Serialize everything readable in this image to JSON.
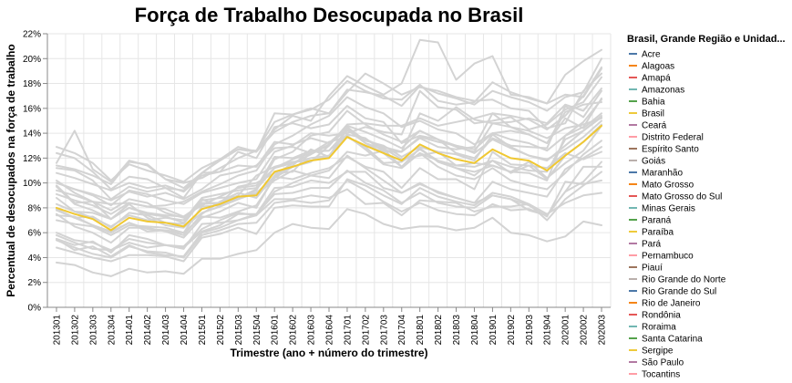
{
  "chart_data": {
    "type": "line",
    "title": "Força de Trabalho Desocupada no Brasil",
    "xlabel": "Trimestre (ano + número do trimestre)",
    "ylabel": "Percentual de desocupados na força de trabalho",
    "ylim": [
      0,
      22
    ],
    "y_ticks": [
      "0%",
      "2%",
      "4%",
      "6%",
      "8%",
      "10%",
      "12%",
      "14%",
      "16%",
      "18%",
      "20%",
      "22%"
    ],
    "grid": true,
    "legend_title": "Brasil, Grande Região e Unidad...",
    "legend_position": "right",
    "categories": [
      "201301",
      "201302",
      "201303",
      "201304",
      "201401",
      "201402",
      "201403",
      "201404",
      "201501",
      "201502",
      "201503",
      "201504",
      "201601",
      "201602",
      "201603",
      "201604",
      "201701",
      "201702",
      "201703",
      "201704",
      "201801",
      "201802",
      "201803",
      "201804",
      "201901",
      "201902",
      "201903",
      "201904",
      "202001",
      "202002",
      "202003"
    ],
    "highlight_series": "Brasil",
    "highlight_color": "#f0c832",
    "background_color": "#d3d3d3",
    "series": [
      {
        "name": "Acre",
        "color": "#4c78a8",
        "values": [
          9.1,
          8.6,
          8.2,
          7.5,
          8.4,
          8.1,
          7.9,
          7.3,
          8.2,
          8.9,
          9.6,
          9.8,
          11.2,
          11.9,
          12.4,
          13.0,
          14.6,
          14.1,
          13.5,
          12.8,
          14.2,
          13.5,
          13.0,
          12.7,
          14.0,
          13.5,
          13.2,
          12.6,
          13.8,
          14.9,
          16.7
        ]
      },
      {
        "name": "Alagoas",
        "color": "#f58518",
        "values": [
          12.9,
          12.4,
          11.6,
          10.2,
          11.5,
          11.0,
          10.6,
          10.1,
          11.2,
          11.9,
          12.7,
          12.5,
          14.1,
          14.9,
          15.4,
          15.6,
          17.5,
          17.3,
          17.0,
          16.2,
          17.8,
          17.2,
          16.8,
          16.3,
          17.4,
          16.9,
          16.5,
          15.8,
          16.9,
          17.3,
          20.0
        ]
      },
      {
        "name": "Amapá",
        "color": "#e45756",
        "values": [
          11.6,
          14.2,
          11.1,
          10.1,
          11.8,
          11.4,
          10.3,
          10.0,
          10.4,
          11.2,
          12.0,
          12.6,
          14.3,
          15.4,
          15.0,
          17.0,
          18.6,
          17.8,
          17.1,
          18.0,
          21.5,
          21.3,
          18.3,
          19.6,
          20.2,
          17.1,
          16.9,
          16.4,
          17.1,
          16.9,
          19.2
        ]
      },
      {
        "name": "Amazonas",
        "color": "#72b7b2",
        "values": [
          9.8,
          8.4,
          8.5,
          8.3,
          8.4,
          8.1,
          8.2,
          8.5,
          9.3,
          9.9,
          10.6,
          11.0,
          13.1,
          13.8,
          14.7,
          15.4,
          16.9,
          16.1,
          15.6,
          14.5,
          15.0,
          14.3,
          14.0,
          13.1,
          14.0,
          14.2,
          13.9,
          13.2,
          15.2,
          14.4,
          15.6
        ]
      },
      {
        "name": "Bahia",
        "color": "#54a24b",
        "values": [
          11.2,
          11.0,
          10.2,
          8.7,
          9.7,
          9.3,
          9.6,
          9.4,
          10.8,
          11.8,
          12.7,
          12.6,
          14.9,
          15.5,
          15.9,
          16.7,
          18.2,
          17.4,
          16.8,
          16.7,
          17.9,
          16.6,
          16.3,
          16.5,
          18.1,
          17.3,
          16.8,
          16.4,
          18.7,
          19.8,
          20.7
        ]
      },
      {
        "name": "Brasil",
        "color": "#eeca3b",
        "values": [
          8.0,
          7.5,
          7.1,
          6.2,
          7.2,
          6.9,
          6.8,
          6.5,
          7.9,
          8.3,
          8.9,
          9.0,
          10.9,
          11.3,
          11.8,
          12.0,
          13.7,
          13.0,
          12.4,
          11.8,
          13.1,
          12.4,
          11.9,
          11.6,
          12.7,
          12.0,
          11.8,
          11.0,
          12.2,
          13.3,
          14.6
        ]
      },
      {
        "name": "Ceará",
        "color": "#b279a2",
        "values": [
          8.8,
          7.7,
          7.6,
          7.1,
          8.0,
          7.5,
          7.3,
          6.8,
          8.7,
          8.1,
          8.7,
          9.2,
          10.5,
          11.4,
          12.7,
          12.1,
          14.3,
          13.2,
          12.7,
          11.3,
          12.8,
          11.7,
          11.2,
          10.9,
          11.4,
          10.9,
          11.7,
          10.4,
          11.6,
          12.6,
          14.6
        ]
      },
      {
        "name": "Distrito Federal",
        "color": "#ff9da6",
        "values": [
          10.8,
          10.4,
          9.9,
          9.4,
          10.0,
          9.6,
          9.8,
          9.3,
          10.6,
          10.9,
          11.4,
          11.3,
          13.3,
          13.1,
          13.6,
          13.2,
          14.5,
          13.4,
          13.0,
          12.1,
          12.9,
          12.5,
          12.3,
          11.8,
          13.9,
          12.9,
          12.2,
          11.9,
          12.7,
          13.7,
          15.0
        ]
      },
      {
        "name": "Espírito Santo",
        "color": "#9d755d",
        "values": [
          7.4,
          7.3,
          6.6,
          6.0,
          6.8,
          6.1,
          6.2,
          5.8,
          7.5,
          8.5,
          9.2,
          8.8,
          10.6,
          11.6,
          12.3,
          13.1,
          14.3,
          13.5,
          12.8,
          11.9,
          12.2,
          12.5,
          11.4,
          11.3,
          11.8,
          10.8,
          11.4,
          10.3,
          12.2,
          13.3,
          14.7
        ]
      },
      {
        "name": "Goiás",
        "color": "#bab0ac",
        "values": [
          6.0,
          5.4,
          5.2,
          4.6,
          5.5,
          5.2,
          5.0,
          4.9,
          6.3,
          7.0,
          7.6,
          7.4,
          9.3,
          10.0,
          10.6,
          10.4,
          12.2,
          11.2,
          10.2,
          9.2,
          9.9,
          9.3,
          8.8,
          8.4,
          10.1,
          9.5,
          9.2,
          8.9,
          11.1,
          12.0,
          12.9
        ]
      },
      {
        "name": "Maranhão",
        "color": "#4c78a8",
        "values": [
          9.7,
          8.3,
          7.8,
          7.1,
          8.3,
          7.2,
          6.6,
          6.4,
          7.6,
          8.1,
          8.7,
          9.4,
          11.9,
          12.5,
          13.8,
          14.1,
          15.8,
          14.7,
          13.9,
          13.3,
          14.2,
          13.5,
          12.9,
          12.5,
          14.8,
          14.5,
          13.9,
          13.2,
          15.7,
          16.3,
          16.5
        ]
      },
      {
        "name": "Mato Grosso",
        "color": "#f58518",
        "values": [
          5.5,
          4.6,
          4.9,
          4.1,
          5.0,
          4.4,
          4.2,
          4.1,
          6.0,
          6.4,
          7.0,
          7.5,
          9.1,
          9.2,
          9.6,
          9.6,
          11.0,
          10.0,
          9.4,
          8.4,
          9.2,
          8.4,
          8.1,
          8.0,
          9.0,
          8.7,
          8.2,
          7.3,
          10.1,
          9.9,
          10.2
        ]
      },
      {
        "name": "Mato Grosso do Sul",
        "color": "#e45756",
        "values": [
          5.4,
          4.8,
          4.3,
          4.0,
          4.9,
          4.5,
          4.4,
          4.0,
          5.8,
          6.2,
          6.7,
          6.8,
          8.4,
          8.6,
          8.4,
          8.6,
          10.2,
          9.4,
          8.5,
          7.7,
          8.4,
          7.8,
          7.5,
          7.4,
          8.3,
          7.8,
          7.9,
          7.4,
          9.3,
          10.1,
          11.7
        ]
      },
      {
        "name": "Minas Gerais",
        "color": "#72b7b2",
        "values": [
          7.0,
          6.7,
          6.5,
          5.8,
          6.6,
          6.5,
          6.4,
          6.0,
          8.1,
          8.2,
          8.8,
          9.5,
          11.2,
          11.6,
          12.0,
          12.2,
          13.8,
          12.7,
          11.5,
          11.2,
          12.4,
          11.3,
          10.6,
          10.3,
          11.2,
          10.2,
          9.8,
          9.5,
          10.8,
          12.3,
          13.4
        ]
      },
      {
        "name": "Paraná",
        "color": "#54a24b",
        "values": [
          4.8,
          4.4,
          4.0,
          3.7,
          4.2,
          4.2,
          4.1,
          3.7,
          5.6,
          5.9,
          6.4,
          5.9,
          8.0,
          8.2,
          8.1,
          8.1,
          10.3,
          9.8,
          9.0,
          8.3,
          9.6,
          8.9,
          8.5,
          8.2,
          9.2,
          8.9,
          8.3,
          7.5,
          8.4,
          9.0,
          9.2
        ]
      },
      {
        "name": "Paraíba",
        "color": "#eeca3b",
        "values": [
          10.0,
          9.5,
          9.1,
          8.6,
          9.3,
          8.9,
          9.2,
          8.7,
          9.5,
          10.6,
          10.9,
          11.4,
          12.8,
          12.9,
          12.4,
          13.3,
          13.7,
          12.9,
          11.6,
          11.7,
          12.7,
          11.8,
          11.4,
          11.6,
          11.4,
          10.9,
          10.8,
          10.2,
          13.8,
          14.5,
          16.8
        ]
      },
      {
        "name": "Pará",
        "color": "#b279a2",
        "values": [
          9.4,
          9.0,
          8.5,
          7.8,
          8.7,
          8.4,
          7.6,
          7.2,
          8.4,
          8.4,
          9.0,
          10.6,
          11.3,
          11.7,
          11.8,
          12.1,
          14.5,
          13.2,
          12.4,
          11.3,
          12.4,
          11.8,
          11.2,
          10.6,
          11.8,
          11.3,
          11.0,
          10.9,
          13.5,
          14.2,
          15.3
        ]
      },
      {
        "name": "Pernambuco",
        "color": "#ff9da6",
        "values": [
          12.4,
          12.0,
          10.9,
          9.5,
          10.5,
          10.3,
          9.6,
          8.8,
          10.8,
          11.9,
          12.9,
          12.5,
          15.6,
          15.5,
          16.0,
          15.6,
          17.3,
          18.8,
          18.0,
          17.1,
          17.7,
          17.4,
          16.9,
          16.6,
          16.7,
          16.0,
          15.8,
          14.4,
          14.8,
          17.4,
          18.8
        ]
      },
      {
        "name": "Piauí",
        "color": "#9d755d",
        "values": [
          7.9,
          7.2,
          7.3,
          6.4,
          7.6,
          7.4,
          6.8,
          6.7,
          8.6,
          8.8,
          8.9,
          9.1,
          10.2,
          11.0,
          10.6,
          11.0,
          12.5,
          12.2,
          12.6,
          12.5,
          13.6,
          12.9,
          12.7,
          12.9,
          15.6,
          14.5,
          14.2,
          13.6,
          14.4,
          14.7,
          15.2
        ]
      },
      {
        "name": "Rio Grande do Norte",
        "color": "#bab0ac",
        "values": [
          11.4,
          11.1,
          10.6,
          9.9,
          11.7,
          11.5,
          10.3,
          9.6,
          10.8,
          10.9,
          12.5,
          12.0,
          14.5,
          14.8,
          14.4,
          14.7,
          16.2,
          15.2,
          14.9,
          13.2,
          13.8,
          13.5,
          12.4,
          12.0,
          13.6,
          13.0,
          12.9,
          12.8,
          16.2,
          15.3,
          17.4
        ]
      },
      {
        "name": "Rio Grande do Sul",
        "color": "#4c78a8",
        "values": [
          5.8,
          5.2,
          4.7,
          4.6,
          5.2,
          4.8,
          5.0,
          4.7,
          6.7,
          6.8,
          7.0,
          7.4,
          8.7,
          8.7,
          9.0,
          8.8,
          9.5,
          8.3,
          8.4,
          7.4,
          8.6,
          8.5,
          8.4,
          7.7,
          8.1,
          8.1,
          8.3,
          7.0,
          8.7,
          9.8,
          10.9
        ]
      },
      {
        "name": "Rio de Janeiro",
        "color": "#f58518",
        "values": [
          7.8,
          7.2,
          6.6,
          6.1,
          6.8,
          6.3,
          6.2,
          6.0,
          7.3,
          7.2,
          7.7,
          8.2,
          10.4,
          11.3,
          11.7,
          13.0,
          14.7,
          14.8,
          14.6,
          14.6,
          15.2,
          14.6,
          14.9,
          15.2,
          15.6,
          15.4,
          15.1,
          14.3,
          15.4,
          17.0,
          19.3
        ]
      },
      {
        "name": "Rondônia",
        "color": "#e45756",
        "values": [
          5.5,
          5.0,
          5.3,
          4.4,
          5.8,
          5.5,
          5.0,
          4.8,
          6.1,
          6.6,
          7.5,
          7.5,
          9.6,
          9.7,
          10.2,
          10.0,
          10.9,
          10.9,
          9.6,
          9.2,
          10.0,
          9.2,
          8.8,
          8.4,
          9.0,
          8.7,
          7.8,
          7.4,
          9.3,
          11.3,
          11.3
        ]
      },
      {
        "name": "Roraima",
        "color": "#72b7b2",
        "values": [
          10.2,
          9.2,
          8.5,
          7.1,
          8.0,
          7.6,
          7.4,
          7.3,
          8.3,
          8.4,
          9.7,
          10.0,
          10.8,
          10.9,
          12.5,
          12.6,
          13.9,
          13.6,
          12.5,
          12.5,
          15.6,
          15.0,
          16.1,
          15.1,
          14.8,
          14.9,
          15.2,
          14.8,
          16.3,
          15.8,
          17.6
        ]
      },
      {
        "name": "Santa Catarina",
        "color": "#54a24b",
        "values": [
          3.6,
          3.4,
          2.8,
          2.5,
          3.1,
          2.8,
          2.9,
          2.7,
          3.9,
          3.9,
          4.3,
          4.6,
          6.0,
          6.7,
          6.4,
          6.3,
          7.9,
          7.5,
          6.7,
          6.3,
          6.5,
          6.5,
          6.2,
          6.4,
          7.2,
          6.0,
          5.8,
          5.3,
          5.7,
          6.9,
          6.6
        ]
      },
      {
        "name": "Sergipe",
        "color": "#eeca3b",
        "values": [
          10.0,
          9.5,
          9.0,
          8.2,
          9.4,
          9.1,
          8.6,
          8.3,
          9.2,
          9.6,
          10.0,
          10.3,
          12.5,
          13.0,
          14.0,
          13.8,
          14.0,
          14.5,
          14.1,
          13.9,
          17.4,
          16.1,
          15.9,
          14.8,
          15.0,
          15.3,
          14.3,
          14.7,
          15.9,
          16.5,
          18.5
        ]
      },
      {
        "name": "São Paulo",
        "color": "#b279a2",
        "values": [
          8.3,
          7.7,
          7.2,
          6.5,
          7.4,
          7.0,
          7.2,
          7.0,
          8.8,
          9.1,
          9.4,
          9.6,
          12.1,
          12.0,
          12.6,
          12.6,
          14.2,
          13.5,
          12.9,
          12.5,
          13.7,
          13.3,
          13.0,
          12.4,
          13.5,
          12.8,
          12.2,
          11.8,
          13.0,
          14.2,
          15.4
        ]
      },
      {
        "name": "Tocantins",
        "color": "#ff9da6",
        "values": [
          7.5,
          6.5,
          6.0,
          5.2,
          6.4,
          6.4,
          6.1,
          5.6,
          7.2,
          7.7,
          8.4,
          8.0,
          10.5,
          10.3,
          10.8,
          11.2,
          12.1,
          11.3,
          10.9,
          9.6,
          11.2,
          10.3,
          10.3,
          9.5,
          12.5,
          11.5,
          11.4,
          11.2,
          12.4,
          11.9,
          12.5
        ]
      }
    ]
  }
}
